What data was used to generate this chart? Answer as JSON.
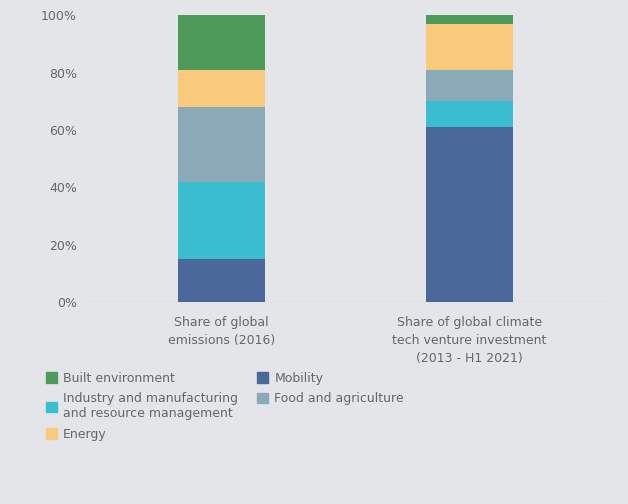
{
  "categories": [
    "Share of global\nemissions (2016)",
    "Share of global climate\ntech venture investment\n(2013 - H1 2021)"
  ],
  "segments": [
    {
      "label": "Mobility",
      "color": "#4a6899",
      "values": [
        15,
        61
      ]
    },
    {
      "label": "Industry and manufacturing\nand resource management",
      "color": "#3bbdd0",
      "values": [
        27,
        9
      ]
    },
    {
      "label": "Food and agriculture",
      "color": "#8aaab8",
      "values": [
        26,
        11
      ]
    },
    {
      "label": "Energy",
      "color": "#f9c97c",
      "values": [
        13,
        16
      ]
    },
    {
      "label": "Built environment",
      "color": "#4e9a5a",
      "values": [
        19,
        3
      ]
    }
  ],
  "background_color": "#e3e5e8",
  "yticks": [
    0,
    20,
    40,
    60,
    80,
    100
  ],
  "ylim": [
    0,
    100
  ],
  "bar_width": 0.28,
  "bar_positions": [
    0.5,
    1.3
  ],
  "xlim": [
    0.05,
    1.75
  ]
}
